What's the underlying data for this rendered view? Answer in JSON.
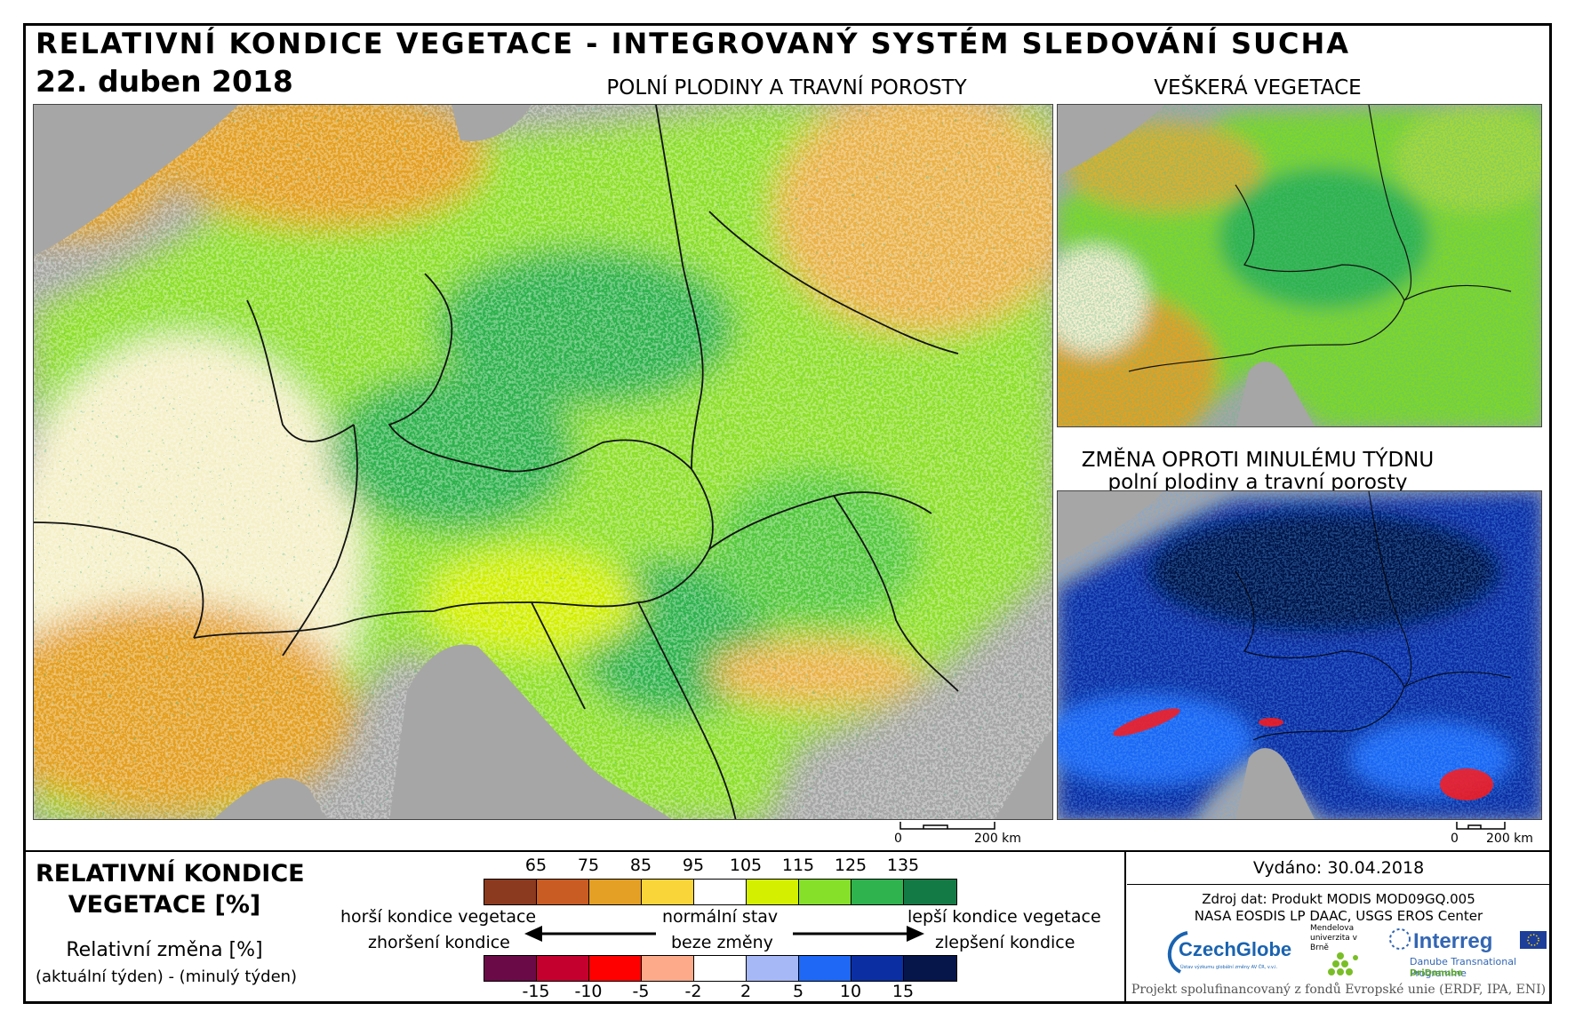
{
  "header": {
    "title": "RELATIVNÍ KONDICE VEGETACE - INTEGROVANÝ SYSTÉM SLEDOVÁNÍ SUCHA",
    "date": "22. duben 2018"
  },
  "panels": {
    "main_title": "POLNÍ PLODINY A TRAVNÍ POROSTY",
    "vegetation_title": "VEŠKERÁ VEGETACE",
    "change_title_line1": "ZMĚNA OPROTI MINULÉMU TÝDNU",
    "change_title_line2": "polní plodiny a travní porosty"
  },
  "scalebar": {
    "zero": "0",
    "distance": "200 km"
  },
  "legend": {
    "title_line1": "RELATIVNÍ KONDICE",
    "title_line2": "VEGETACE [%]",
    "sub_line1": "Relativní změna [%]",
    "sub_line2": "(aktuální týden) - (minulý týden)",
    "condition_ticks": [
      "65",
      "75",
      "85",
      "95",
      "105",
      "115",
      "125",
      "135"
    ],
    "condition_colors": [
      "#8c3a1f",
      "#c95c22",
      "#e4a024",
      "#fad53a",
      "#ffffff",
      "#d4f000",
      "#86e02a",
      "#2eb34e",
      "#137a45"
    ],
    "change_ticks": [
      "-15",
      "-10",
      "-5",
      "-2",
      "2",
      "5",
      "10",
      "15"
    ],
    "change_colors": [
      "#6a0b47",
      "#c4002f",
      "#ff0000",
      "#fcaa8a",
      "#ffffff",
      "#a7b8f7",
      "#1f68f5",
      "#0b2fa3",
      "#06154a"
    ],
    "worse_condition": "horší kondice vegetace",
    "worse_change": "zhoršení kondice",
    "normal": "normální stav",
    "no_change": "beze změny",
    "better_condition": "lepší kondice vegetace",
    "better_change": "zlepšení kondice"
  },
  "info": {
    "issued": "Vydáno: 30.04.2018",
    "source_line1": "Zdroj dat: Produkt MODIS MOD09GQ.005",
    "source_line2": "NASA EOSDIS LP DAAC, USGS EROS Center",
    "funding": "Projekt spolufinancovaný z fondů Evropské unie (ERDF, IPA, ENI)"
  },
  "logos": {
    "czechglobe": "CzechGlobe",
    "czechglobe_sub": "Ústav výzkumu globální změny AV ČR, v.v.i.",
    "mendel": "Mendelova univerzita v Brně",
    "interreg": "Interreg",
    "interreg_sub": "Danube Transnational Programme",
    "dridanube": "DriDanube"
  }
}
